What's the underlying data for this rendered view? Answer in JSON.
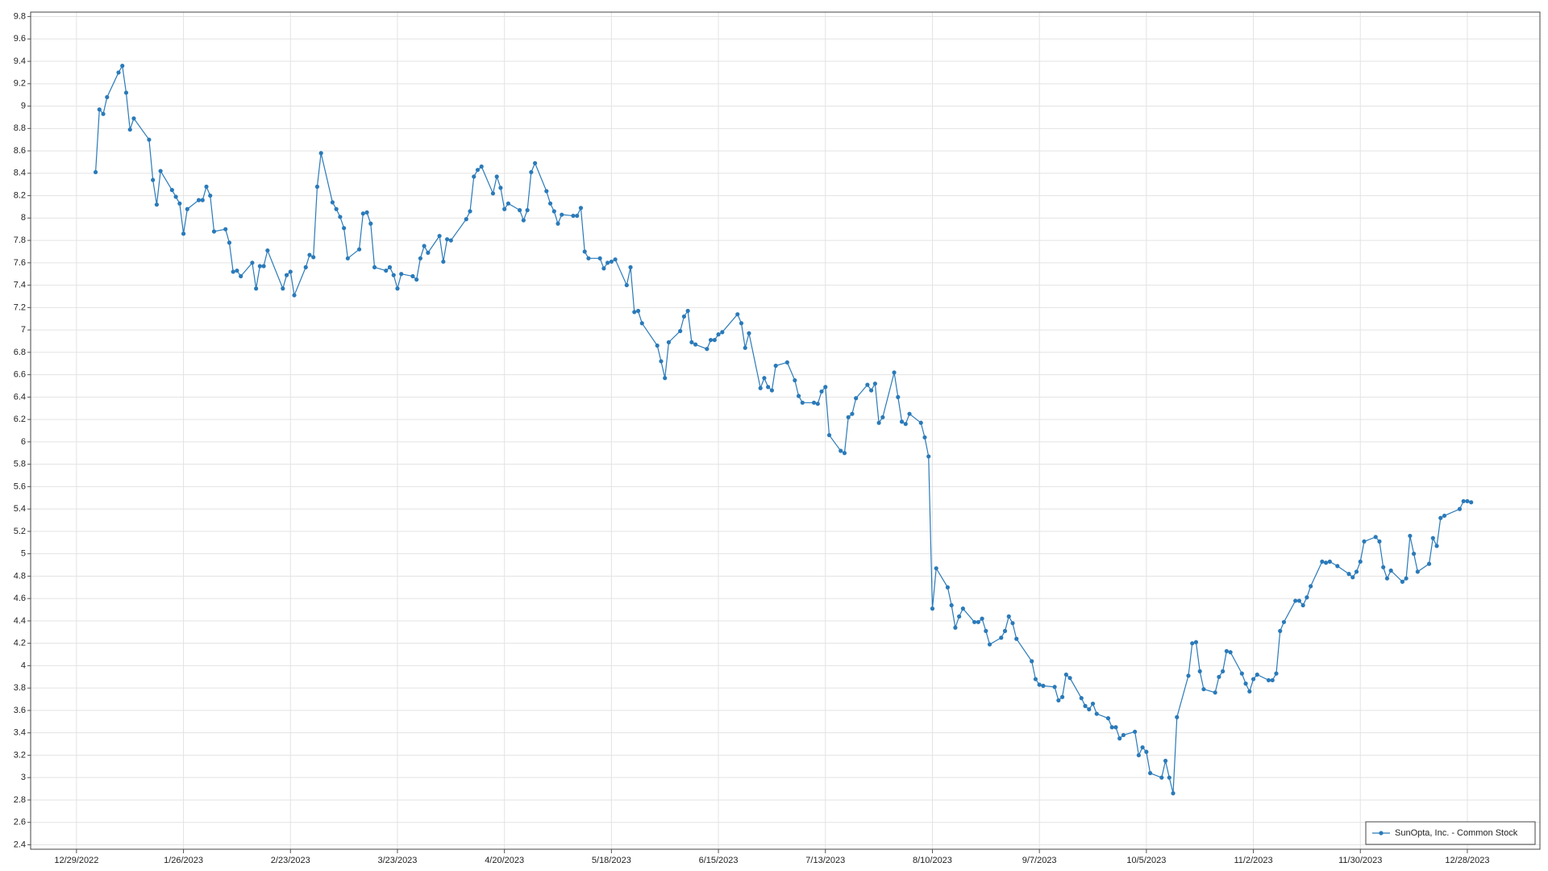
{
  "chart_data": {
    "type": "line",
    "x": [
      "1/3/2023",
      "1/4/2023",
      "1/5/2023",
      "1/6/2023",
      "1/9/2023",
      "1/10/2023",
      "1/11/2023",
      "1/12/2023",
      "1/13/2023",
      "1/17/2023",
      "1/18/2023",
      "1/19/2023",
      "1/20/2023",
      "1/23/2023",
      "1/24/2023",
      "1/25/2023",
      "1/26/2023",
      "1/27/2023",
      "1/30/2023",
      "1/31/2023",
      "2/1/2023",
      "2/2/2023",
      "2/3/2023",
      "2/6/2023",
      "2/7/2023",
      "2/8/2023",
      "2/9/2023",
      "2/10/2023",
      "2/13/2023",
      "2/14/2023",
      "2/15/2023",
      "2/16/2023",
      "2/17/2023",
      "2/21/2023",
      "2/22/2023",
      "2/23/2023",
      "2/24/2023",
      "2/27/2023",
      "2/28/2023",
      "3/1/2023",
      "3/2/2023",
      "3/3/2023",
      "3/6/2023",
      "3/7/2023",
      "3/8/2023",
      "3/9/2023",
      "3/10/2023",
      "3/13/2023",
      "3/14/2023",
      "3/15/2023",
      "3/16/2023",
      "3/17/2023",
      "3/20/2023",
      "3/21/2023",
      "3/22/2023",
      "3/23/2023",
      "3/24/2023",
      "3/27/2023",
      "3/28/2023",
      "3/29/2023",
      "3/30/2023",
      "3/31/2023",
      "4/3/2023",
      "4/4/2023",
      "4/5/2023",
      "4/6/2023",
      "4/10/2023",
      "4/11/2023",
      "4/12/2023",
      "4/13/2023",
      "4/14/2023",
      "4/17/2023",
      "4/18/2023",
      "4/19/2023",
      "4/20/2023",
      "4/21/2023",
      "4/24/2023",
      "4/25/2023",
      "4/26/2023",
      "4/27/2023",
      "4/28/2023",
      "5/1/2023",
      "5/2/2023",
      "5/3/2023",
      "5/4/2023",
      "5/5/2023",
      "5/8/2023",
      "5/9/2023",
      "5/10/2023",
      "5/11/2023",
      "5/12/2023",
      "5/15/2023",
      "5/16/2023",
      "5/17/2023",
      "5/18/2023",
      "5/19/2023",
      "5/22/2023",
      "5/23/2023",
      "5/24/2023",
      "5/25/2023",
      "5/26/2023",
      "5/30/2023",
      "5/31/2023",
      "6/1/2023",
      "6/2/2023",
      "6/5/2023",
      "6/6/2023",
      "6/7/2023",
      "6/8/2023",
      "6/9/2023",
      "6/12/2023",
      "6/13/2023",
      "6/14/2023",
      "6/15/2023",
      "6/16/2023",
      "6/20/2023",
      "6/21/2023",
      "6/22/2023",
      "6/23/2023",
      "6/26/2023",
      "6/27/2023",
      "6/28/2023",
      "6/29/2023",
      "6/30/2023",
      "7/3/2023",
      "7/5/2023",
      "7/6/2023",
      "7/7/2023",
      "7/10/2023",
      "7/11/2023",
      "7/12/2023",
      "7/13/2023",
      "7/14/2023",
      "7/17/2023",
      "7/18/2023",
      "7/19/2023",
      "7/20/2023",
      "7/21/2023",
      "7/24/2023",
      "7/25/2023",
      "7/26/2023",
      "7/27/2023",
      "7/28/2023",
      "7/31/2023",
      "8/1/2023",
      "8/2/2023",
      "8/3/2023",
      "8/4/2023",
      "8/7/2023",
      "8/8/2023",
      "8/9/2023",
      "8/10/2023",
      "8/11/2023",
      "8/14/2023",
      "8/15/2023",
      "8/16/2023",
      "8/17/2023",
      "8/18/2023",
      "8/21/2023",
      "8/22/2023",
      "8/23/2023",
      "8/24/2023",
      "8/25/2023",
      "8/28/2023",
      "8/29/2023",
      "8/30/2023",
      "8/31/2023",
      "9/1/2023",
      "9/5/2023",
      "9/6/2023",
      "9/7/2023",
      "9/8/2023",
      "9/11/2023",
      "9/12/2023",
      "9/13/2023",
      "9/14/2023",
      "9/15/2023",
      "9/18/2023",
      "9/19/2023",
      "9/20/2023",
      "9/21/2023",
      "9/22/2023",
      "9/25/2023",
      "9/26/2023",
      "9/27/2023",
      "9/28/2023",
      "9/29/2023",
      "10/2/2023",
      "10/3/2023",
      "10/4/2023",
      "10/5/2023",
      "10/6/2023",
      "10/9/2023",
      "10/10/2023",
      "10/11/2023",
      "10/12/2023",
      "10/13/2023",
      "10/16/2023",
      "10/17/2023",
      "10/18/2023",
      "10/19/2023",
      "10/20/2023",
      "10/23/2023",
      "10/24/2023",
      "10/25/2023",
      "10/26/2023",
      "10/27/2023",
      "10/30/2023",
      "10/31/2023",
      "11/1/2023",
      "11/2/2023",
      "11/3/2023",
      "11/6/2023",
      "11/7/2023",
      "11/8/2023",
      "11/9/2023",
      "11/10/2023",
      "11/13/2023",
      "11/14/2023",
      "11/15/2023",
      "11/16/2023",
      "11/17/2023",
      "11/20/2023",
      "11/21/2023",
      "11/22/2023",
      "11/24/2023",
      "11/27/2023",
      "11/28/2023",
      "11/29/2023",
      "11/30/2023",
      "12/1/2023",
      "12/4/2023",
      "12/5/2023",
      "12/6/2023",
      "12/7/2023",
      "12/8/2023",
      "12/11/2023",
      "12/12/2023",
      "12/13/2023",
      "12/14/2023",
      "12/15/2023",
      "12/18/2023",
      "12/19/2023",
      "12/20/2023",
      "12/21/2023",
      "12/22/2023",
      "12/26/2023",
      "12/27/2023",
      "12/28/2023",
      "12/29/2023"
    ],
    "series": [
      {
        "name": "SunOpta, Inc. - Common Stock",
        "color": "#2a7ab9",
        "values": [
          8.41,
          8.97,
          8.93,
          9.08,
          9.3,
          9.36,
          9.12,
          8.79,
          8.89,
          8.7,
          8.34,
          8.12,
          8.42,
          8.25,
          8.19,
          8.13,
          7.86,
          8.08,
          8.16,
          8.16,
          8.28,
          8.2,
          7.88,
          7.9,
          7.78,
          7.52,
          7.53,
          7.48,
          7.6,
          7.37,
          7.57,
          7.57,
          7.71,
          7.37,
          7.49,
          7.52,
          7.31,
          7.56,
          7.67,
          7.65,
          8.28,
          8.58,
          8.14,
          8.08,
          8.01,
          7.91,
          7.64,
          7.72,
          8.04,
          8.05,
          7.95,
          7.56,
          7.53,
          7.56,
          7.49,
          7.37,
          7.5,
          7.48,
          7.45,
          7.64,
          7.75,
          7.69,
          7.84,
          7.61,
          7.81,
          7.8,
          7.99,
          8.06,
          8.37,
          8.43,
          8.46,
          8.22,
          8.37,
          8.27,
          8.08,
          8.13,
          8.07,
          7.98,
          8.07,
          8.41,
          8.49,
          8.24,
          8.13,
          8.06,
          7.95,
          8.03,
          8.02,
          8.02,
          8.09,
          7.7,
          7.64,
          7.64,
          7.55,
          7.6,
          7.61,
          7.63,
          7.4,
          7.56,
          7.16,
          7.17,
          7.06,
          6.86,
          6.72,
          6.57,
          6.89,
          6.99,
          7.12,
          7.17,
          6.89,
          6.87,
          6.83,
          6.91,
          6.91,
          6.96,
          6.98,
          7.14,
          7.06,
          6.84,
          6.97,
          6.48,
          6.57,
          6.49,
          6.46,
          6.68,
          6.71,
          6.55,
          6.41,
          6.35,
          6.35,
          6.34,
          6.45,
          6.49,
          6.06,
          5.92,
          5.9,
          6.22,
          6.25,
          6.39,
          6.51,
          6.46,
          6.52,
          6.17,
          6.22,
          6.62,
          6.4,
          6.18,
          6.16,
          6.25,
          6.17,
          6.04,
          5.87,
          4.51,
          4.87,
          4.7,
          4.54,
          4.34,
          4.44,
          4.51,
          4.39,
          4.39,
          4.42,
          4.31,
          4.19,
          4.25,
          4.31,
          4.44,
          4.38,
          4.24,
          4.04,
          3.88,
          3.83,
          3.82,
          3.81,
          3.69,
          3.72,
          3.92,
          3.89,
          3.71,
          3.64,
          3.61,
          3.66,
          3.57,
          3.53,
          3.45,
          3.45,
          3.35,
          3.38,
          3.41,
          3.2,
          3.27,
          3.23,
          3.04,
          3.0,
          3.15,
          3.0,
          2.86,
          3.54,
          3.91,
          4.2,
          4.21,
          3.95,
          3.79,
          3.76,
          3.9,
          3.95,
          4.13,
          4.12,
          3.93,
          3.84,
          3.77,
          3.88,
          3.92,
          3.87,
          3.87,
          3.93,
          4.31,
          4.39,
          4.58,
          4.58,
          4.54,
          4.61,
          4.71,
          4.93,
          4.92,
          4.93,
          4.89,
          4.82,
          4.79,
          4.84,
          4.93,
          5.11,
          5.15,
          5.11,
          4.88,
          4.78,
          4.85,
          4.75,
          4.78,
          5.16,
          5.0,
          4.84,
          4.91,
          5.14,
          5.07,
          5.32,
          5.34,
          5.4,
          5.47,
          5.47,
          5.46
        ]
      }
    ],
    "xlim": [
      "12/17/2022",
      "1/16/2024"
    ],
    "xticks": [
      "12/29/2022",
      "1/26/2023",
      "2/23/2023",
      "3/23/2023",
      "4/20/2023",
      "5/18/2023",
      "6/15/2023",
      "7/13/2023",
      "8/10/2023",
      "9/7/2023",
      "10/5/2023",
      "11/2/2023",
      "11/30/2023",
      "12/28/2023"
    ],
    "ylim": [
      2.36,
      9.84
    ],
    "yticks": [
      2.4,
      2.6,
      2.8,
      3,
      3.2,
      3.4,
      3.6,
      3.8,
      4,
      4.2,
      4.4,
      4.6,
      4.8,
      5,
      5.2,
      5.4,
      5.6,
      5.8,
      6,
      6.2,
      6.4,
      6.6,
      6.8,
      7,
      7.2,
      7.4,
      7.6,
      7.8,
      8,
      8.2,
      8.4,
      8.6,
      8.8,
      9,
      9.2,
      9.4,
      9.6,
      9.8
    ],
    "grid": true,
    "legend": "lower right"
  }
}
